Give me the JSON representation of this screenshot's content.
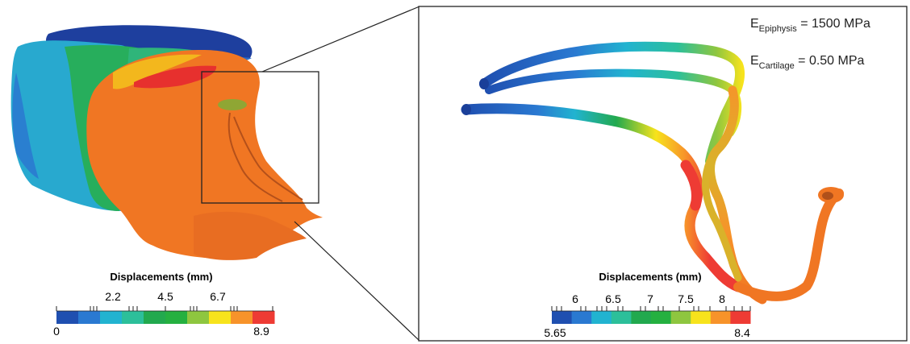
{
  "left_panel": {
    "colorbar": {
      "title": "Displacements (mm)",
      "colors": [
        "#1f4fb0",
        "#2a79d1",
        "#21b3d0",
        "#2cbf9a",
        "#22a94e",
        "#25b040",
        "#8ec63f",
        "#f7e31c",
        "#f7932a",
        "#ee3b34"
      ],
      "labels_top": [
        "2.2",
        "4.5",
        "6.7"
      ],
      "label_min": "0",
      "label_max": "8.9"
    }
  },
  "right_panel": {
    "equations": [
      {
        "symbol": "E",
        "subscript": "Epiphysis",
        "rhs": " = 1500 MPa"
      },
      {
        "symbol": "E",
        "subscript": "Cartilage",
        "rhs": " = 0.50 MPa"
      }
    ],
    "colorbar": {
      "title": "Displacements (mm)",
      "colors": [
        "#1f4fb0",
        "#2a79d1",
        "#21b3d0",
        "#2cbf9a",
        "#22a94e",
        "#25b040",
        "#8ec63f",
        "#f7e31c",
        "#f7932a",
        "#ee3b34"
      ],
      "labels_top": [
        "6",
        "6.5",
        "7",
        "7.5",
        "8"
      ],
      "label_min": "5.65",
      "label_max": "8.4"
    }
  }
}
